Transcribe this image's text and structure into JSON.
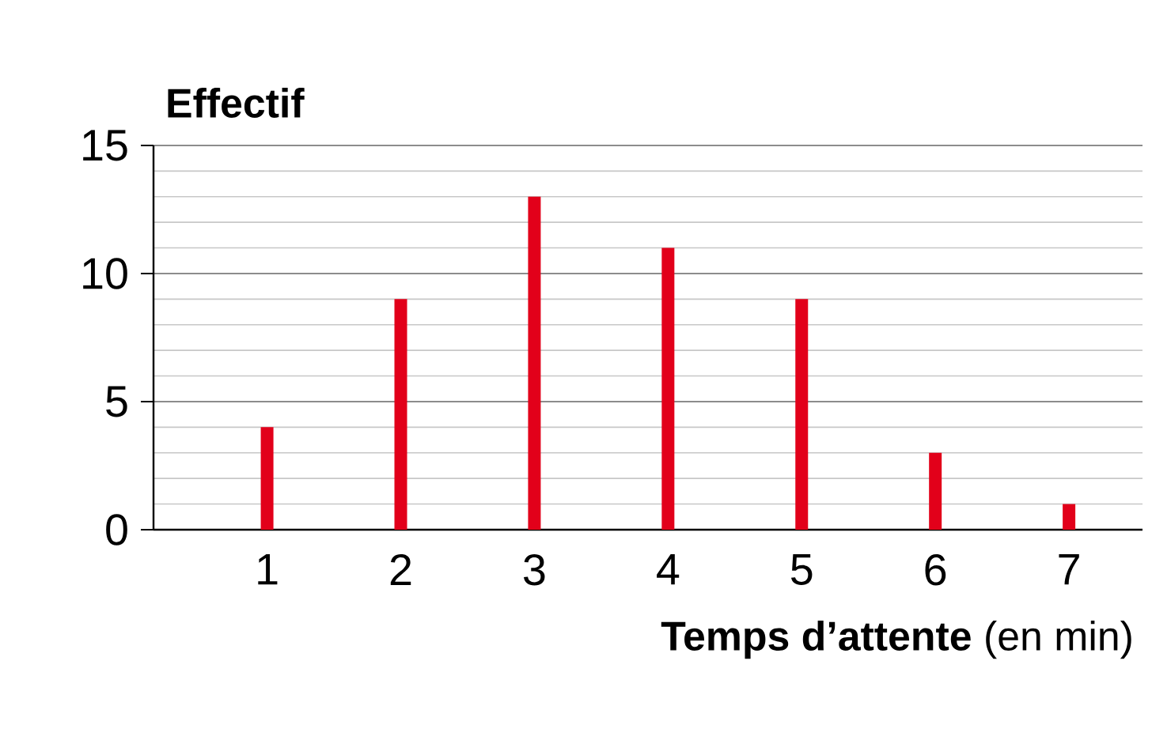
{
  "chart_data": {
    "type": "bar",
    "ylabel": "Effectif",
    "xlabel": "**Temps d’attente** (en min)",
    "categories": [
      "1",
      "2",
      "3",
      "4",
      "5",
      "6",
      "7"
    ],
    "values": [
      4,
      9,
      13,
      11,
      9,
      3,
      1
    ],
    "color": "#e2001a",
    "ylim": [
      0,
      15
    ],
    "yticks": [
      0,
      5,
      10,
      15
    ],
    "grid": "y"
  }
}
